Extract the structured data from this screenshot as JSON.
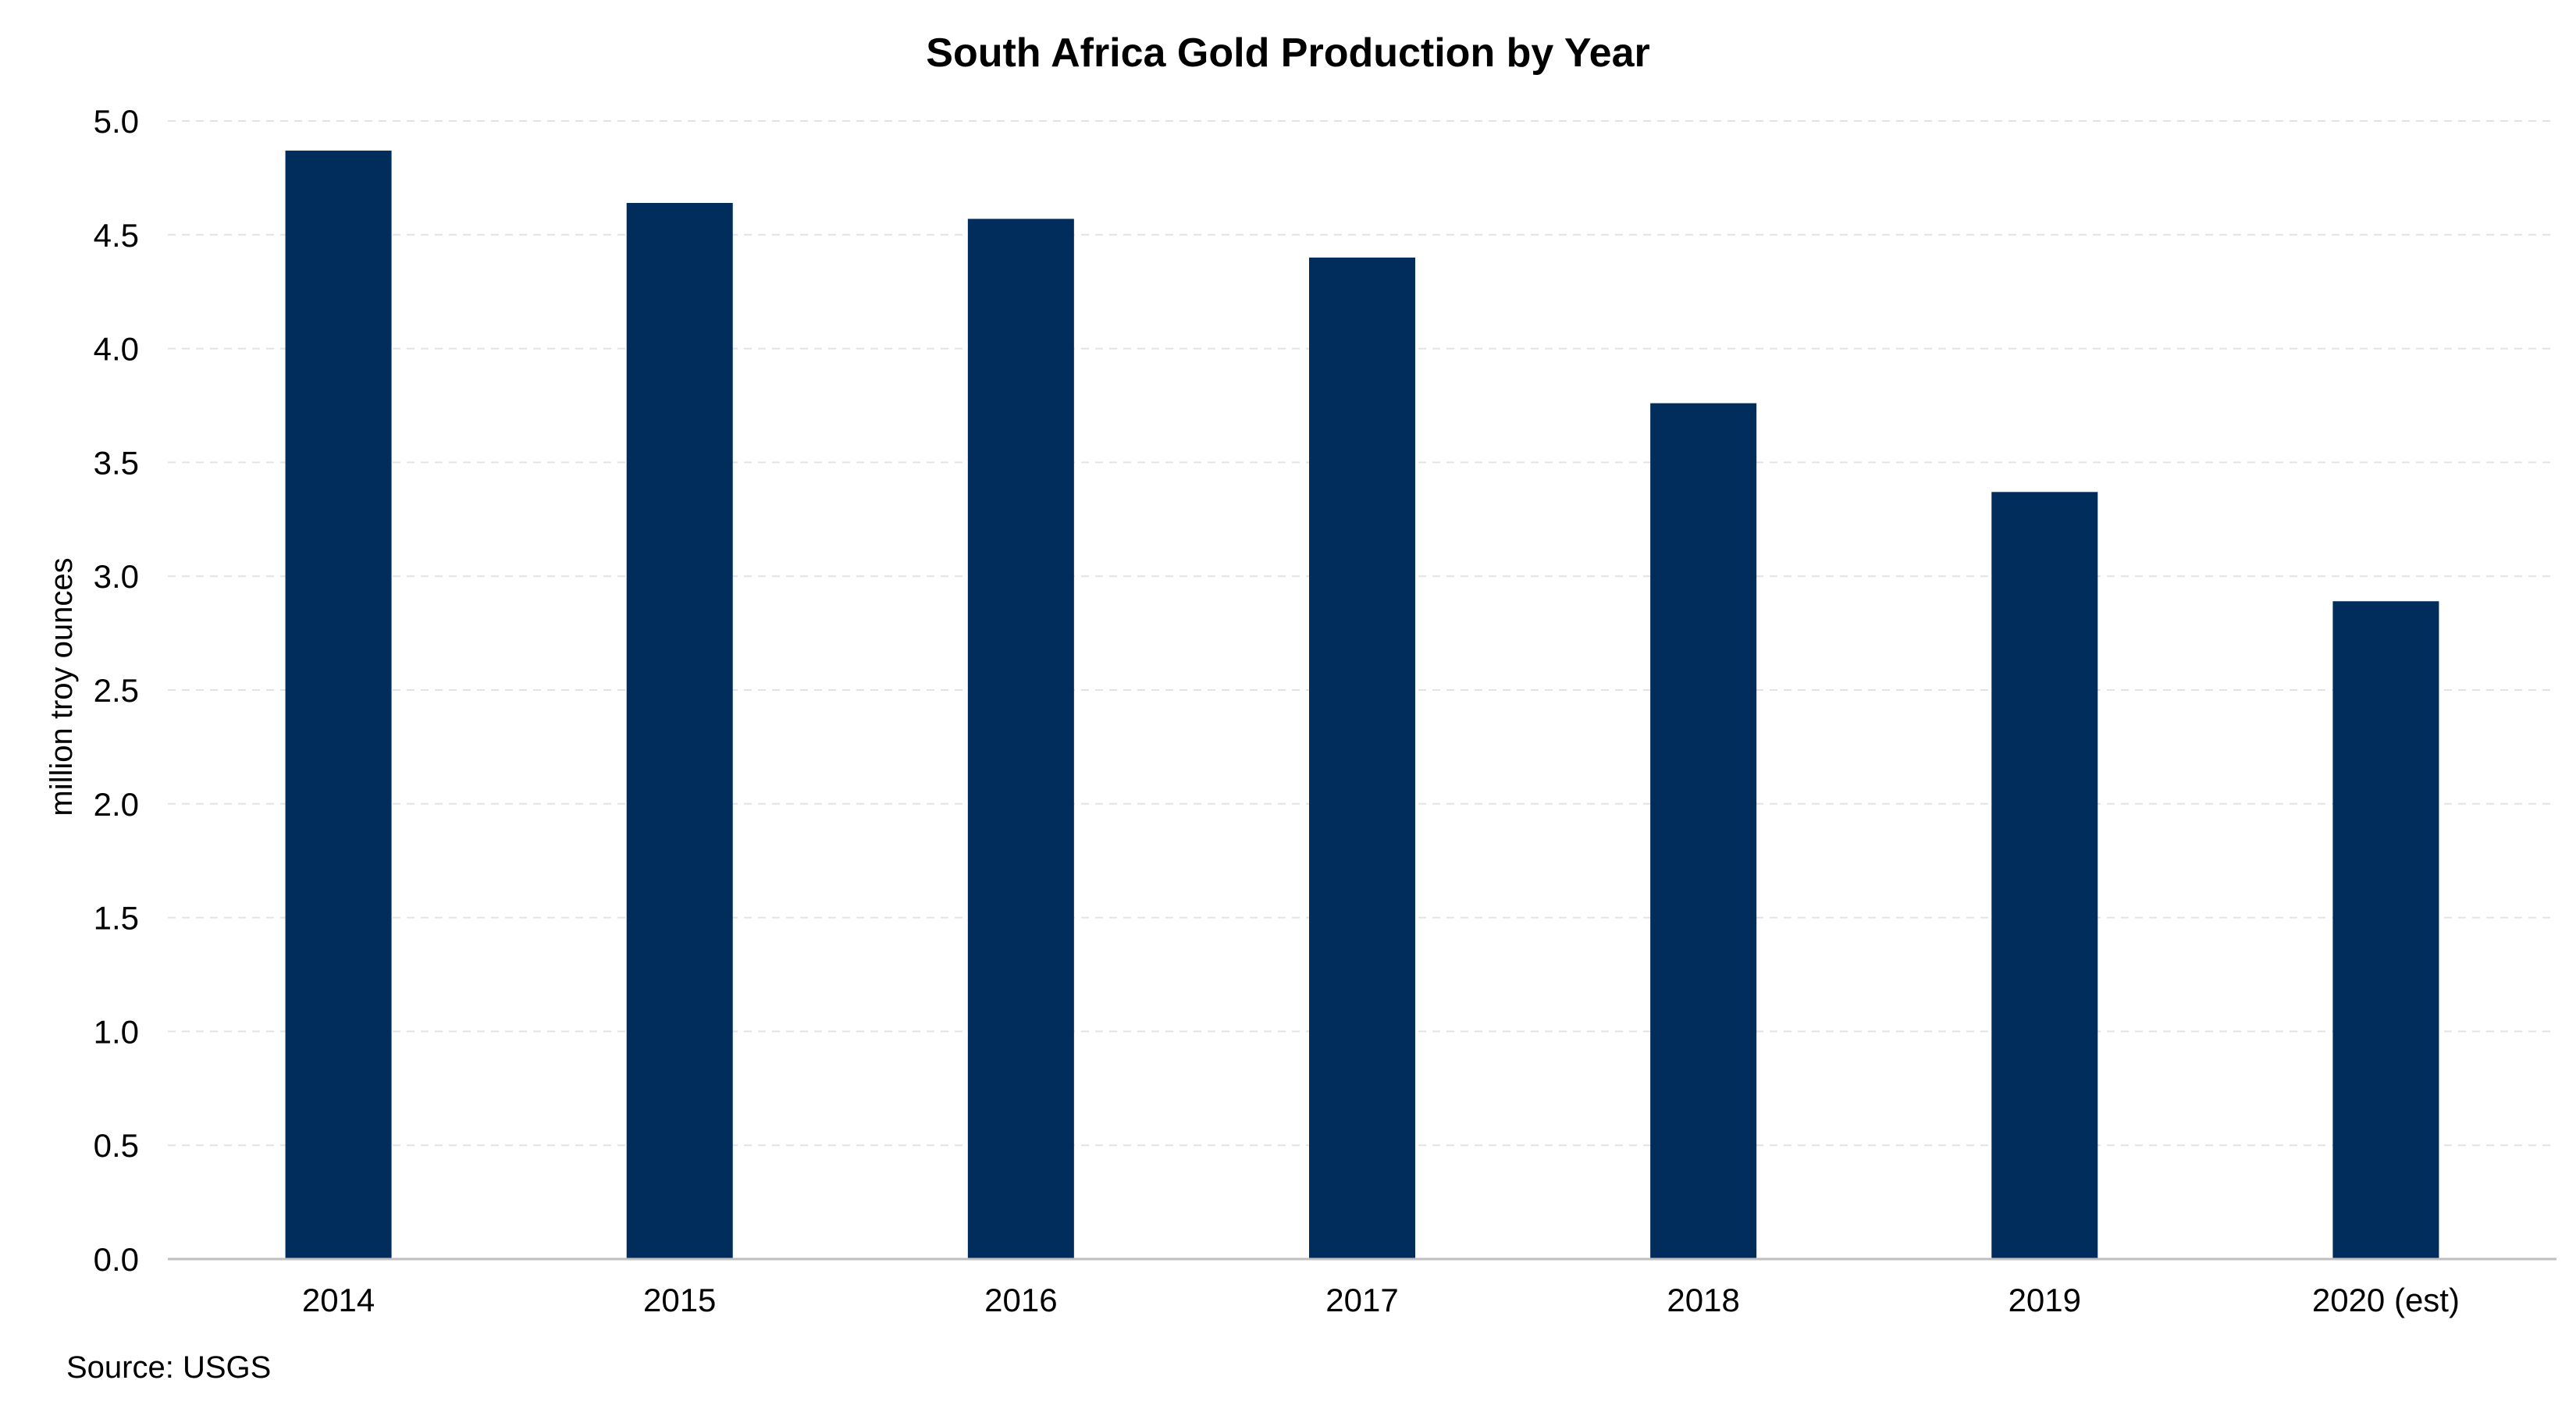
{
  "chart_data": {
    "type": "bar",
    "title": "South Africa Gold Production by Year",
    "xlabel": "",
    "ylabel": "million troy ounces",
    "categories": [
      "2014",
      "2015",
      "2016",
      "2017",
      "2018",
      "2019",
      "2020 (est)"
    ],
    "series": [
      {
        "values": [
          4.87,
          4.64,
          4.57,
          4.4,
          3.76,
          3.37,
          2.89
        ]
      }
    ],
    "ylim": [
      0,
      5
    ],
    "yticks": [
      "0.0",
      "0.5",
      "1.0",
      "1.5",
      "2.0",
      "2.5",
      "3.0",
      "3.5",
      "4.0",
      "4.5",
      "5.0"
    ],
    "grid": true,
    "legend": "none",
    "bar_color": "#002D5C",
    "gridline_color": "#E3E3E3",
    "axis_color": "#BFBFBF",
    "source": "Source: USGS"
  }
}
